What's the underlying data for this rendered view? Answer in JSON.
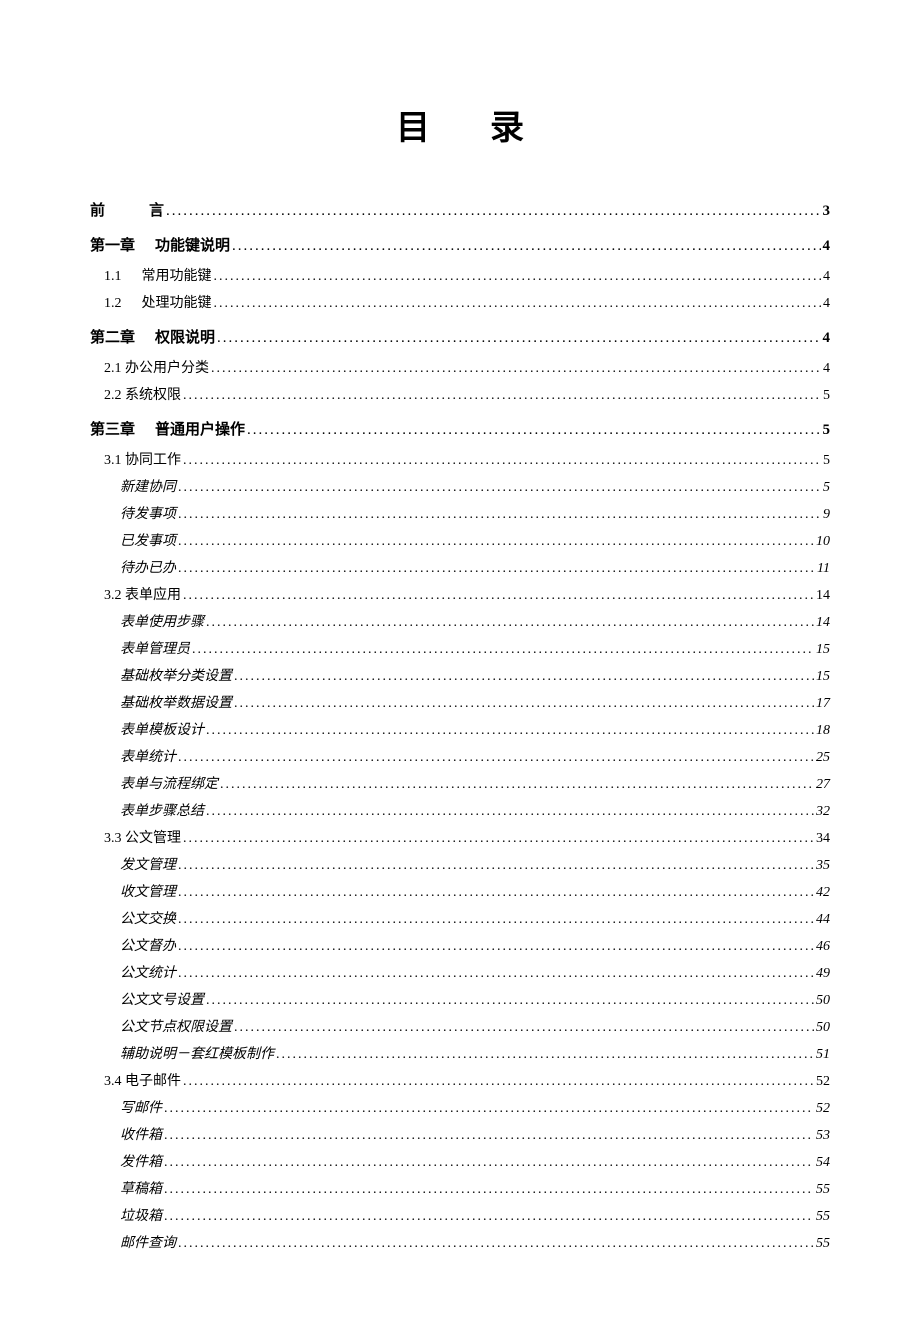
{
  "title": "目录",
  "toc": [
    {
      "cls": "chapter preface",
      "prefix": "前",
      "label": "言",
      "page": "3"
    },
    {
      "cls": "chapter",
      "prefix": "第一章",
      "label": "功能键说明",
      "page": "4"
    },
    {
      "cls": "sub1",
      "prefix": "1.1",
      "label": "常用功能键",
      "page": "4"
    },
    {
      "cls": "sub1",
      "prefix": "1.2",
      "label": "处理功能键",
      "page": "4"
    },
    {
      "cls": "chapter",
      "prefix": "第二章",
      "label": "权限说明",
      "page": "4"
    },
    {
      "cls": "sub1",
      "prefix": "",
      "label": "2.1 办公用户分类",
      "page": "4"
    },
    {
      "cls": "sub1",
      "prefix": "",
      "label": "2.2 系统权限",
      "page": "5"
    },
    {
      "cls": "chapter",
      "prefix": "第三章",
      "label": "普通用户操作",
      "page": "5"
    },
    {
      "cls": "sub1",
      "prefix": "",
      "label": "3.1 协同工作",
      "page": "5"
    },
    {
      "cls": "sub2",
      "prefix": "",
      "label": "新建协同",
      "page": "5"
    },
    {
      "cls": "sub2",
      "prefix": "",
      "label": "待发事项",
      "page": "9"
    },
    {
      "cls": "sub2",
      "prefix": "",
      "label": "已发事项",
      "page": "10"
    },
    {
      "cls": "sub2",
      "prefix": "",
      "label": "待办已办",
      "page": "11"
    },
    {
      "cls": "sub1",
      "prefix": "",
      "label": "3.2 表单应用",
      "page": "14"
    },
    {
      "cls": "sub2",
      "prefix": "",
      "label": "表单使用步骤",
      "page": "14"
    },
    {
      "cls": "sub2",
      "prefix": "",
      "label": "表单管理员",
      "page": "15"
    },
    {
      "cls": "sub2",
      "prefix": "",
      "label": "基础枚举分类设置",
      "page": "15"
    },
    {
      "cls": "sub2",
      "prefix": "",
      "label": "基础枚举数据设置",
      "page": "17"
    },
    {
      "cls": "sub2",
      "prefix": "",
      "label": "表单模板设计",
      "page": "18"
    },
    {
      "cls": "sub2",
      "prefix": "",
      "label": "表单统计",
      "page": "25"
    },
    {
      "cls": "sub2",
      "prefix": "",
      "label": "表单与流程绑定",
      "page": "27"
    },
    {
      "cls": "sub2",
      "prefix": "",
      "label": "表单步骤总结",
      "page": "32"
    },
    {
      "cls": "sub1",
      "prefix": "",
      "label": "3.3 公文管理",
      "page": "34"
    },
    {
      "cls": "sub2",
      "prefix": "",
      "label": "发文管理",
      "page": "35"
    },
    {
      "cls": "sub2",
      "prefix": "",
      "label": "收文管理",
      "page": "42"
    },
    {
      "cls": "sub2",
      "prefix": "",
      "label": "公文交换",
      "page": "44"
    },
    {
      "cls": "sub2",
      "prefix": "",
      "label": "公文督办",
      "page": "46"
    },
    {
      "cls": "sub2",
      "prefix": "",
      "label": "公文统计",
      "page": "49"
    },
    {
      "cls": "sub2",
      "prefix": "",
      "label": "公文文号设置",
      "page": "50"
    },
    {
      "cls": "sub2",
      "prefix": "",
      "label": "公文节点权限设置",
      "page": "50"
    },
    {
      "cls": "sub2",
      "prefix": "",
      "label": "辅助说明－套红模板制作",
      "page": "51"
    },
    {
      "cls": "sub1",
      "prefix": "",
      "label": "3.4 电子邮件",
      "page": "52"
    },
    {
      "cls": "sub2",
      "prefix": "",
      "label": "写邮件",
      "page": "52"
    },
    {
      "cls": "sub2",
      "prefix": "",
      "label": "收件箱",
      "page": "53"
    },
    {
      "cls": "sub2",
      "prefix": "",
      "label": "发件箱",
      "page": "54"
    },
    {
      "cls": "sub2",
      "prefix": "",
      "label": "草稿箱",
      "page": "55"
    },
    {
      "cls": "sub2",
      "prefix": "",
      "label": "垃圾箱",
      "page": "55"
    },
    {
      "cls": "sub2",
      "prefix": "",
      "label": "邮件查询",
      "page": "55"
    }
  ]
}
